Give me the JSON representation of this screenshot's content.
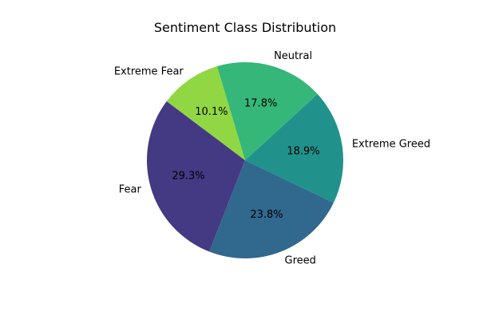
{
  "chart_data": {
    "type": "pie",
    "title": "Sentiment Class Distribution",
    "slices": [
      {
        "label": "Fear",
        "value": 29.3,
        "pct_text": "29.3%",
        "color": "#443983"
      },
      {
        "label": "Greed",
        "value": 23.8,
        "pct_text": "23.8%",
        "color": "#31688e"
      },
      {
        "label": "Extreme Greed",
        "value": 18.9,
        "pct_text": "18.9%",
        "color": "#21918c"
      },
      {
        "label": "Neutral",
        "value": 17.8,
        "pct_text": "17.8%",
        "color": "#35b779"
      },
      {
        "label": "Extreme Fear",
        "value": 10.1,
        "pct_text": "10.1%",
        "color": "#90d743"
      }
    ],
    "start_angle_deg": 143,
    "direction": "counterclockwise",
    "legend": "none"
  }
}
